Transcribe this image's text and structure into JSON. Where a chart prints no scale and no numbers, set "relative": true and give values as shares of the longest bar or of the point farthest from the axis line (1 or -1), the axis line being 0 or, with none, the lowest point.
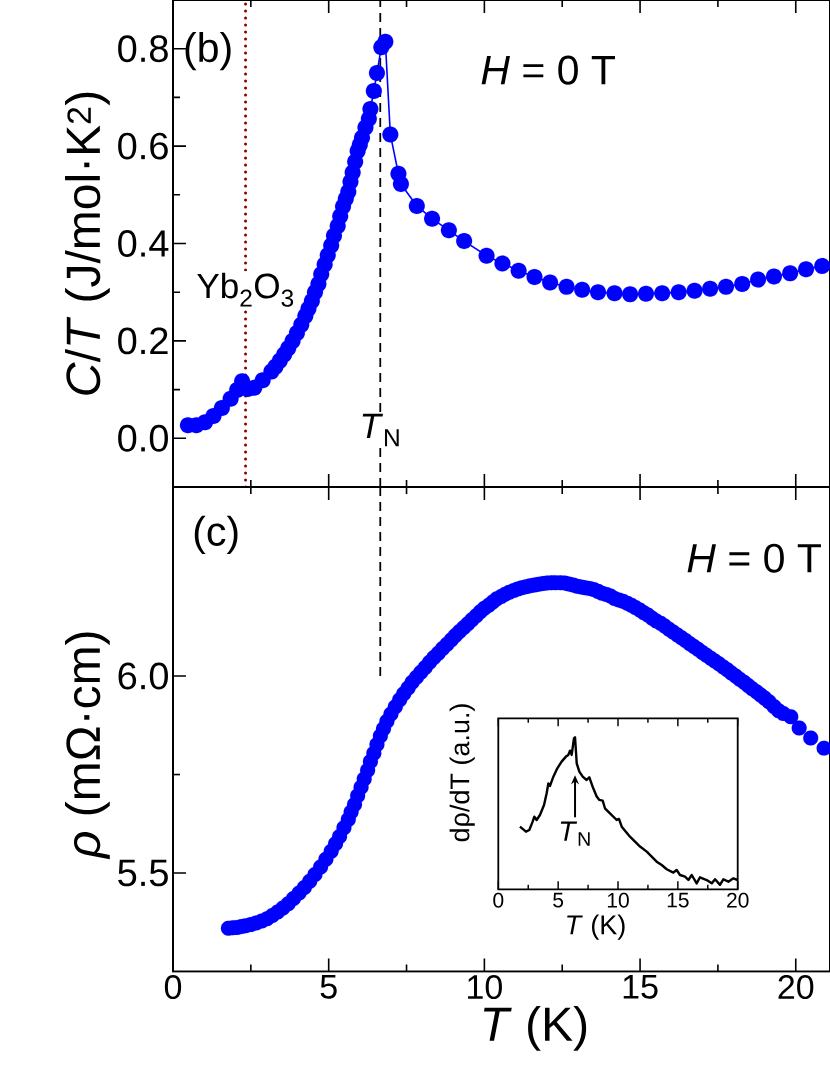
{
  "chart_data": [
    {
      "type": "line",
      "marker": "circle",
      "line_style": "solid",
      "ylabel": "*C*/*T* (J/mol·K$^{2}$)",
      "annotations": [
        "(b)",
        "*H* = 0 T"
      ],
      "x": [
        0.48,
        0.75,
        1.03,
        1.3,
        1.57,
        1.85,
        2.06,
        2.22,
        2.4,
        2.61,
        2.88,
        3.16,
        3.29,
        3.43,
        3.57,
        3.7,
        3.84,
        3.98,
        4.12,
        4.25,
        4.35,
        4.46,
        4.56,
        4.67,
        4.76,
        4.87,
        4.97,
        5.08,
        5.17,
        5.29,
        5.37,
        5.46,
        5.55,
        5.63,
        5.7,
        5.77,
        5.85,
        5.93,
        6.0,
        6.07,
        6.18,
        6.29,
        6.34,
        6.45,
        6.55,
        6.69,
        6.82,
        6.98,
        7.24,
        7.32,
        7.83,
        8.32,
        8.86,
        9.35,
        10.07,
        10.58,
        11.1,
        11.61,
        12.11,
        12.64,
        13.14,
        13.65,
        14.18,
        14.68,
        15.19,
        15.71,
        16.24,
        16.75,
        17.25,
        17.76,
        18.28,
        18.79,
        19.3,
        19.82,
        20.33,
        20.85
      ],
      "series": [
        {
          "color": "#0000ff",
          "values": [
            0.027,
            0.027,
            0.033,
            0.046,
            0.062,
            0.081,
            0.099,
            0.117,
            0.101,
            0.104,
            0.119,
            0.137,
            0.147,
            0.159,
            0.172,
            0.185,
            0.2,
            0.216,
            0.233,
            0.251,
            0.266,
            0.282,
            0.3,
            0.317,
            0.337,
            0.357,
            0.376,
            0.396,
            0.416,
            0.436,
            0.456,
            0.476,
            0.492,
            0.506,
            0.527,
            0.546,
            0.568,
            0.59,
            0.603,
            0.617,
            0.638,
            0.656,
            0.676,
            0.713,
            0.75,
            0.803,
            0.814,
            0.624,
            0.543,
            0.522,
            0.477,
            0.451,
            0.427,
            0.405,
            0.375,
            0.359,
            0.344,
            0.331,
            0.32,
            0.311,
            0.305,
            0.3,
            0.298,
            0.296,
            0.297,
            0.298,
            0.3,
            0.303,
            0.307,
            0.311,
            0.317,
            0.326,
            0.332,
            0.339,
            0.347,
            0.354
          ]
        }
      ],
      "xlim": [
        0,
        21.1
      ],
      "xticks": [
        0,
        5,
        10,
        15,
        20
      ],
      "ylim": [
        -0.1,
        0.9
      ],
      "yticks": [
        {
          "value": 0,
          "label": "0.0"
        },
        0.2,
        0.4,
        0.6,
        0.8
      ],
      "tick_labels": "y",
      "ref_lines": [
        {
          "axis": "x",
          "value": 2.33,
          "label": "Yb$_{2}$O$_{3}$",
          "color": "#8b0000",
          "line_style": "dotted"
        },
        {
          "axis": "x",
          "value": 6.66,
          "label": "*T*$_{N}$",
          "color": "#000000",
          "line_style": "dashed"
        }
      ]
    },
    {
      "type": "scatter",
      "marker": "circle",
      "xlabel": "*T* (K)",
      "ylabel": "*ρ* (mΩ·cm)",
      "annotations": [
        "(c)",
        "*H* = 0 T"
      ],
      "series": [
        {
          "color": "#0000ff",
          "x": [
            1.78,
            1.92,
            2.06,
            2.2,
            2.33,
            2.5,
            2.67,
            2.85,
            3.02,
            3.19,
            3.36,
            3.53,
            3.7,
            3.87,
            4.05,
            4.22,
            4.39,
            4.56,
            4.74,
            4.91,
            5.08,
            5.22,
            5.35,
            5.49,
            5.63,
            5.72,
            5.83,
            5.93,
            6.04,
            6.14,
            6.25,
            6.34,
            6.45,
            6.55,
            6.66,
            6.76,
            6.87,
            7.0,
            7.14,
            7.28,
            7.41,
            7.55,
            7.68,
            7.82,
            7.96,
            8.1,
            8.24,
            8.38,
            8.52,
            8.66,
            8.8,
            8.94,
            9.07,
            9.2,
            9.34,
            9.47,
            9.6,
            9.74,
            9.87,
            10.0,
            10.14,
            10.27,
            10.4,
            10.54,
            10.67,
            10.8,
            10.94,
            11.07,
            11.2,
            11.34,
            11.47,
            11.61,
            11.74,
            11.88,
            12.01,
            12.15,
            12.28,
            12.44,
            12.58,
            12.71,
            12.85,
            12.98,
            13.11,
            13.24,
            13.38,
            13.51,
            13.65,
            13.78,
            13.92,
            14.05,
            14.18,
            14.32,
            14.45,
            14.59,
            14.72,
            14.85,
            14.99,
            15.12,
            15.25,
            15.39,
            15.52,
            15.66,
            15.79,
            15.93,
            16.06,
            16.2,
            16.33,
            16.46,
            16.6,
            16.73,
            16.86,
            17.0,
            17.13,
            17.27,
            17.4,
            17.53,
            17.67,
            17.8,
            17.93,
            18.07,
            18.2,
            18.34,
            18.47,
            18.6,
            18.74,
            18.87,
            19.0,
            19.14,
            19.3,
            19.45,
            19.6,
            19.84,
            20.11,
            20.48,
            20.91
          ],
          "values": [
            5.36,
            5.361,
            5.362,
            5.364,
            5.366,
            5.369,
            5.373,
            5.378,
            5.384,
            5.392,
            5.401,
            5.411,
            5.422,
            5.435,
            5.449,
            5.463,
            5.479,
            5.496,
            5.515,
            5.535,
            5.555,
            5.574,
            5.593,
            5.615,
            5.636,
            5.655,
            5.674,
            5.696,
            5.718,
            5.739,
            5.761,
            5.783,
            5.804,
            5.826,
            5.848,
            5.866,
            5.885,
            5.904,
            5.922,
            5.94,
            5.955,
            5.97,
            5.984,
            5.997,
            6.01,
            6.022,
            6.035,
            6.047,
            6.058,
            6.07,
            6.081,
            6.092,
            6.103,
            6.113,
            6.123,
            6.133,
            6.143,
            6.153,
            6.163,
            6.172,
            6.18,
            6.188,
            6.196,
            6.202,
            6.208,
            6.213,
            6.217,
            6.221,
            6.224,
            6.227,
            6.229,
            6.231,
            6.233,
            6.235,
            6.236,
            6.237,
            6.237,
            6.237,
            6.236,
            6.234,
            6.231,
            6.228,
            6.226,
            6.224,
            6.222,
            6.22,
            6.215,
            6.21,
            6.207,
            6.203,
            6.197,
            6.193,
            6.19,
            6.185,
            6.18,
            6.174,
            6.168,
            6.161,
            6.155,
            6.147,
            6.14,
            6.134,
            6.127,
            6.119,
            6.112,
            6.104,
            6.097,
            6.09,
            6.082,
            6.075,
            6.068,
            6.06,
            6.053,
            6.045,
            6.038,
            6.031,
            6.023,
            6.016,
            6.008,
            6.0,
            5.992,
            5.984,
            5.976,
            5.968,
            5.96,
            5.952,
            5.944,
            5.935,
            5.923,
            5.912,
            5.905,
            5.897,
            5.868,
            5.843,
            5.817
          ]
        },
        {
          "type": "line",
          "color": "#000000",
          "line_style": "dashed",
          "marker": "none",
          "x": [
            6.66,
            6.66
          ],
          "values": [
            6.48,
            6.0
          ]
        }
      ],
      "xlim": [
        0,
        21.1
      ],
      "xticks": [
        0,
        5,
        10,
        15,
        20
      ],
      "ylim": [
        5.25,
        6.48
      ],
      "yticks": [
        5.5,
        {
          "value": 6,
          "label": "6.0"
        }
      ]
    },
    {
      "type": "line",
      "relative": true,
      "xlabel": "*T* (K)",
      "ylabel": "dρ/dT (a.u.)",
      "annotations": [
        {
          "text": "*T*$_{N}$",
          "x": 6.41,
          "y": 0.75
        }
      ],
      "x": [
        1.81,
        2.31,
        2.59,
        2.87,
        3.01,
        3.2,
        3.48,
        3.82,
        4.04,
        4.18,
        4.32,
        4.6,
        4.93,
        5.29,
        5.65,
        5.85,
        5.99,
        6.13,
        6.32,
        6.41,
        6.55,
        6.77,
        7.05,
        7.38,
        7.6,
        7.88,
        8.22,
        8.44,
        8.72,
        8.91,
        9.33,
        9.89,
        10.08,
        10.31,
        11.0,
        11.84,
        12.4,
        13.23,
        13.65,
        14.07,
        14.62,
        14.9,
        15.18,
        15.6,
        15.88,
        16.16,
        16.57,
        16.85,
        17.41,
        17.83,
        18.11,
        18.52,
        18.8,
        19.22,
        19.64,
        20.0
      ],
      "series": [
        {
          "color": "#000000",
          "values": [
            0.412,
            0.379,
            0.39,
            0.445,
            0.478,
            0.456,
            0.489,
            0.555,
            0.632,
            0.697,
            0.68,
            0.741,
            0.796,
            0.84,
            0.873,
            0.884,
            0.912,
            0.884,
            0.993,
            1,
            0.829,
            0.774,
            0.741,
            0.719,
            0.737,
            0.675,
            0.61,
            0.588,
            0.583,
            0.533,
            0.5,
            0.456,
            0.463,
            0.412,
            0.346,
            0.281,
            0.248,
            0.182,
            0.16,
            0.132,
            0.11,
            0.127,
            0.094,
            0.083,
            0.061,
            0.094,
            0.039,
            0.079,
            0.061,
            0.039,
            0.066,
            0.029,
            0.066,
            0.05,
            0.072,
            0.061
          ]
        }
      ],
      "xlim": [
        0,
        20
      ],
      "xticks": [
        0,
        5,
        10,
        15,
        20
      ]
    }
  ]
}
